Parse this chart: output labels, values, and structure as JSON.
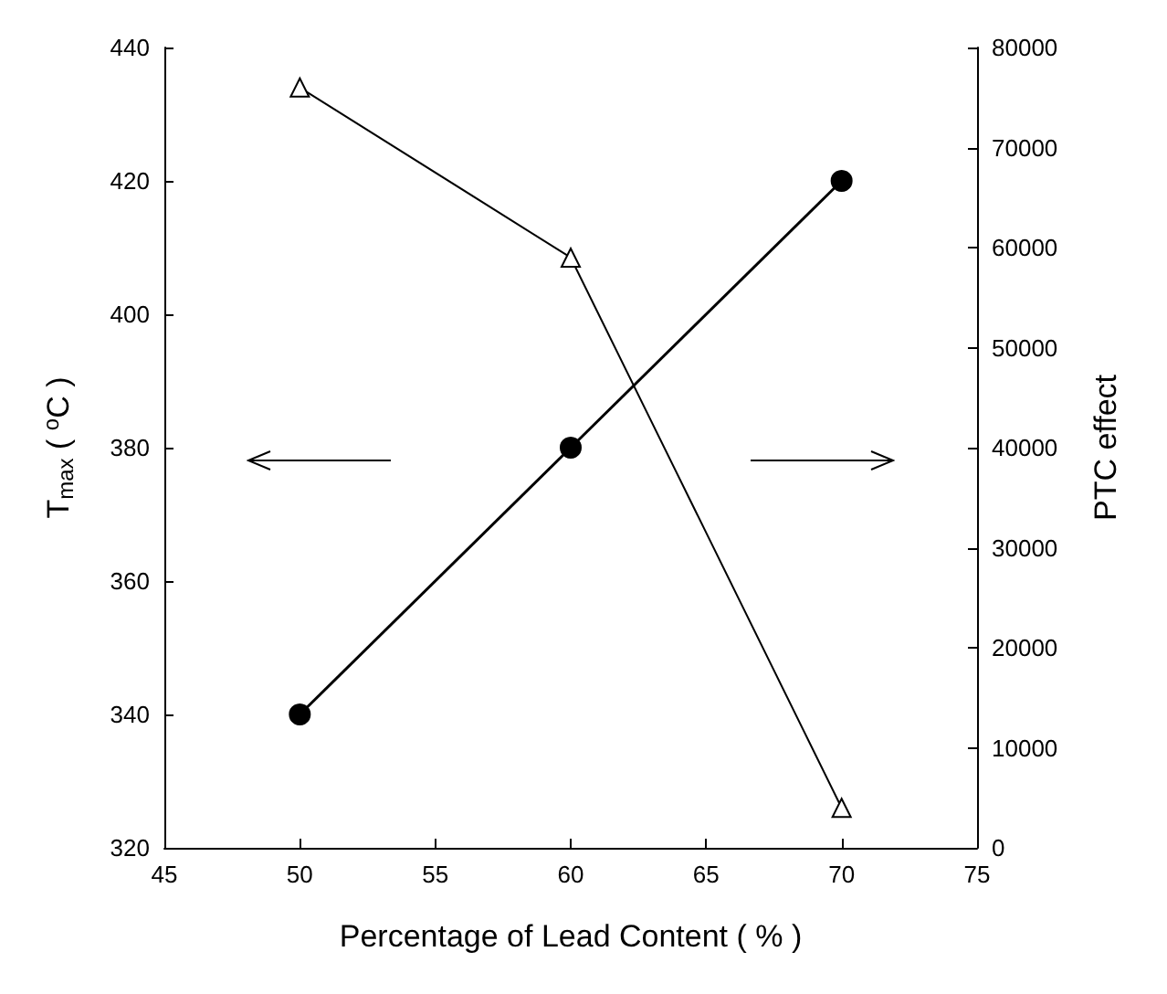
{
  "chart_data": {
    "type": "line",
    "xlabel": "Percentage of Lead Content ( % )",
    "ylabel": "T$_{max}$ ( $^{o}$C )",
    "y2label": "PTC effect",
    "x": [
      50,
      60,
      70
    ],
    "series": [
      {
        "color": "#000000",
        "values": [
          340,
          380,
          420
        ],
        "marker": "circle"
      },
      {
        "color": "#000000",
        "values": [
          76000,
          59000,
          4000
        ],
        "axis": "y2",
        "marker": "triangle"
      }
    ],
    "xlim": [
      45,
      75
    ],
    "xticks": [
      45,
      50,
      55,
      60,
      65,
      70,
      75
    ],
    "ylim": [
      320,
      440
    ],
    "yticks": [
      320,
      340,
      360,
      380,
      400,
      420,
      440
    ],
    "y2lim": [
      0,
      80000
    ],
    "y2ticks": [
      0,
      10000,
      20000,
      30000,
      40000,
      50000,
      60000,
      70000,
      80000
    ],
    "grid": false
  }
}
